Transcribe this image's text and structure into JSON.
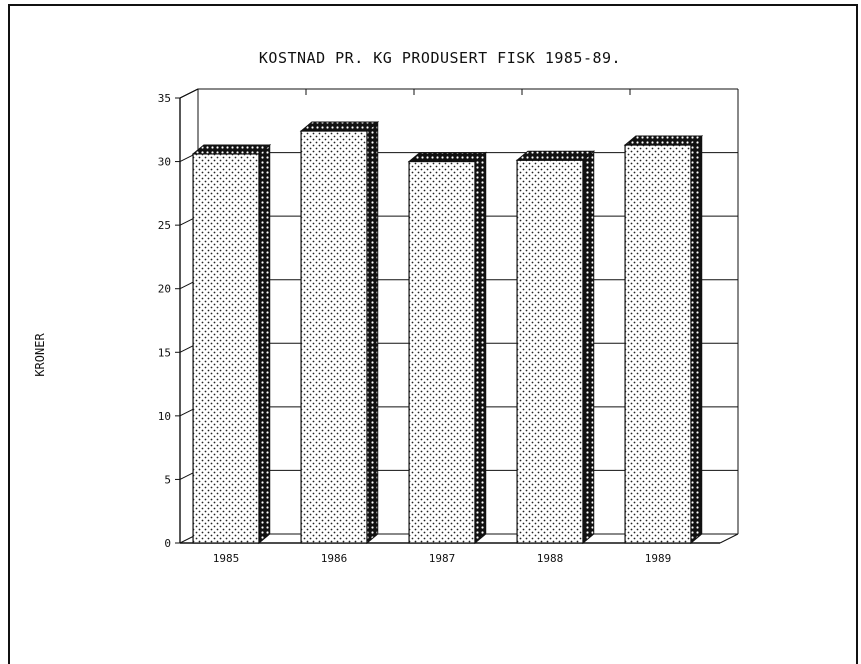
{
  "chart_data": {
    "type": "bar",
    "title": "KOSTNAD PR. KG PRODUSERT FISK 1985-89.",
    "xlabel": "",
    "ylabel": "KRONER",
    "categories": [
      "1985",
      "1986",
      "1987",
      "1988",
      "1989"
    ],
    "values": [
      30.6,
      32.4,
      30.0,
      30.1,
      31.3
    ],
    "ylim": [
      0,
      35
    ],
    "yticks": [
      "0",
      "5",
      "10",
      "15",
      "20",
      "25",
      "30",
      "35"
    ],
    "grid": true,
    "legend": "none",
    "style": "3d",
    "colors": {
      "bar_face": "#ffffff",
      "bar_pattern": "#222222",
      "bar_side": "#111111",
      "grid": "#111111"
    }
  }
}
